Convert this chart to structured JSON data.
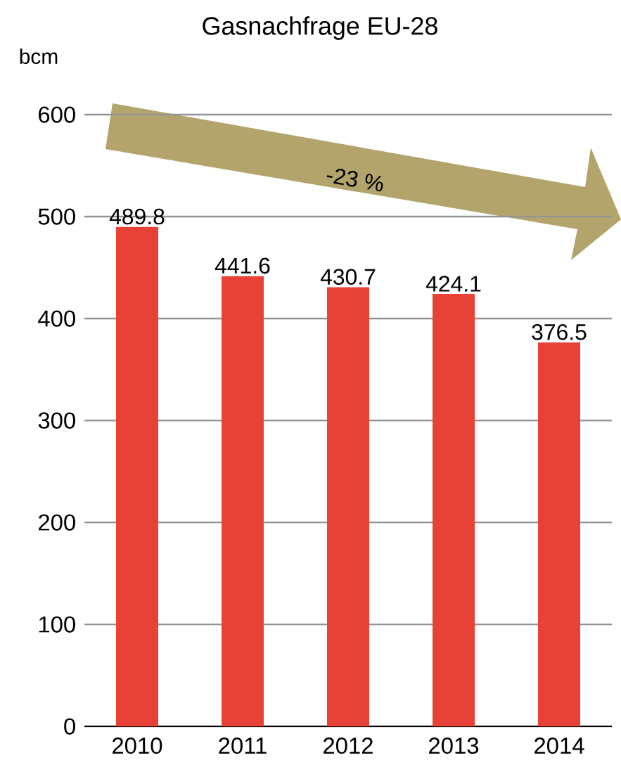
{
  "chart_data": {
    "type": "bar",
    "title": "Gasnachfrage EU-28",
    "ylabel": "bcm",
    "categories": [
      "2010",
      "2011",
      "2012",
      "2013",
      "2014"
    ],
    "values": [
      489.8,
      441.6,
      430.7,
      424.1,
      376.5
    ],
    "color": "#e84136",
    "ylim": [
      0,
      600
    ],
    "yticks": [
      0,
      100,
      200,
      300,
      400,
      500,
      600
    ],
    "grid": "y",
    "data_labels": true,
    "annotations": [
      "-23 %"
    ]
  }
}
